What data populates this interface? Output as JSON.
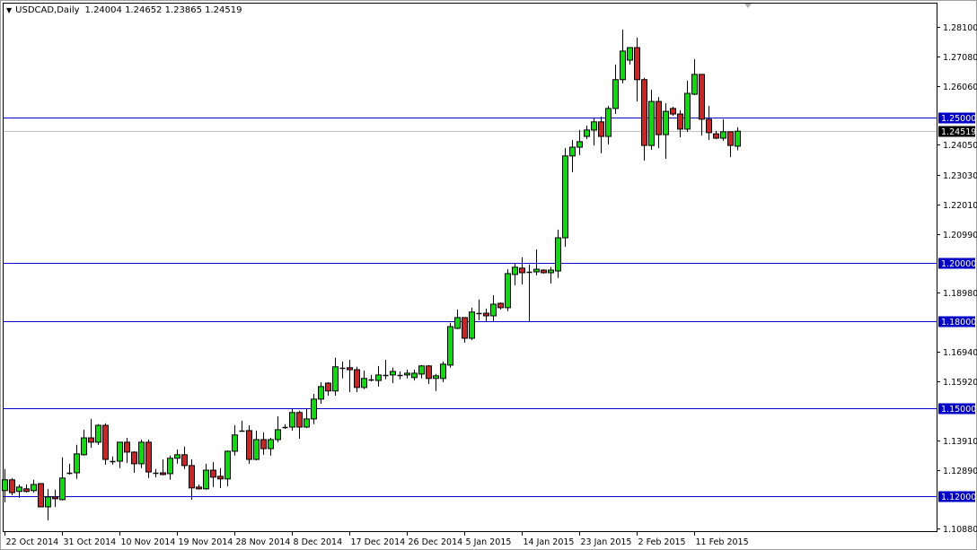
{
  "header": {
    "symbol_timeframe": "USDCAD,Daily",
    "ohlc_text": "1.24004 1.24652 1.23865 1.24519"
  },
  "colors": {
    "bull": "#00e400",
    "bear": "#d81e1e",
    "level_line": "#0000c8",
    "bid_line": "#c0c0c0",
    "current_label_bg": "#000000"
  },
  "chart_data": {
    "type": "candlestick",
    "title": "USDCAD,Daily",
    "ylim": [
      1.1088,
      1.281
    ],
    "grid": false,
    "y_tick_labels": [
      "1.28100",
      "1.27080",
      "1.26060",
      "1.24050",
      "1.23030",
      "1.22010",
      "1.20990",
      "1.18980",
      "1.16940",
      "1.15920",
      "1.13910",
      "1.12890",
      "1.10880"
    ],
    "horizontal_levels": [
      {
        "price": 1.25,
        "label": "1.25000"
      },
      {
        "price": 1.2,
        "label": "1.20000"
      },
      {
        "price": 1.18,
        "label": "1.18000"
      },
      {
        "price": 1.15,
        "label": "1.15000"
      },
      {
        "price": 1.12,
        "label": "1.12000"
      }
    ],
    "current_price": {
      "price": 1.24519,
      "label": "1.24519"
    },
    "x_tick_labels": [
      {
        "bar": 0,
        "label": "22 Oct 2014"
      },
      {
        "bar": 8,
        "label": "31 Oct 2014"
      },
      {
        "bar": 16,
        "label": "10 Nov 2014"
      },
      {
        "bar": 24,
        "label": "19 Nov 2014"
      },
      {
        "bar": 32,
        "label": "28 Nov 2014"
      },
      {
        "bar": 40,
        "label": "8 Dec 2014"
      },
      {
        "bar": 48,
        "label": "17 Dec 2014"
      },
      {
        "bar": 56,
        "label": "26 Dec 2014"
      },
      {
        "bar": 64,
        "label": "5 Jan 2015"
      },
      {
        "bar": 72,
        "label": "14 Jan 2015"
      },
      {
        "bar": 80,
        "label": "23 Jan 2015"
      },
      {
        "bar": 88,
        "label": "2 Feb 2015"
      },
      {
        "bar": 96,
        "label": "11 Feb 2015"
      }
    ],
    "ohlc": [
      [
        1.1218,
        1.1292,
        1.1178,
        1.1255
      ],
      [
        1.1255,
        1.1261,
        1.1202,
        1.1211
      ],
      [
        1.1215,
        1.1239,
        1.1193,
        1.123
      ],
      [
        1.1224,
        1.1239,
        1.1211,
        1.1215
      ],
      [
        1.1218,
        1.1255,
        1.1211,
        1.1239
      ],
      [
        1.1242,
        1.1242,
        1.1162,
        1.1162
      ],
      [
        1.1162,
        1.1224,
        1.1116,
        1.1196
      ],
      [
        1.1196,
        1.1221,
        1.1162,
        1.119
      ],
      [
        1.1187,
        1.1332,
        1.1184,
        1.1261
      ],
      [
        1.1279,
        1.131,
        1.1273,
        1.1279
      ],
      [
        1.1279,
        1.1375,
        1.1258,
        1.1344
      ],
      [
        1.1341,
        1.1427,
        1.1338,
        1.1399
      ],
      [
        1.1399,
        1.1464,
        1.1365,
        1.1384
      ],
      [
        1.1384,
        1.1446,
        1.1375,
        1.1442
      ],
      [
        1.1442,
        1.1449,
        1.1307,
        1.1325
      ],
      [
        1.1319,
        1.1335,
        1.1307,
        1.1319
      ],
      [
        1.1319,
        1.1384,
        1.1295,
        1.1384
      ],
      [
        1.1384,
        1.1399,
        1.1313,
        1.135
      ],
      [
        1.135,
        1.1353,
        1.1279,
        1.131
      ],
      [
        1.131,
        1.1393,
        1.1295,
        1.1384
      ],
      [
        1.1384,
        1.1393,
        1.1261,
        1.1282
      ],
      [
        1.1279,
        1.1292,
        1.1264,
        1.1279
      ],
      [
        1.1279,
        1.1325,
        1.127,
        1.1273
      ],
      [
        1.1276,
        1.1338,
        1.1255,
        1.1329
      ],
      [
        1.1329,
        1.1359,
        1.131,
        1.1341
      ],
      [
        1.1341,
        1.1369,
        1.1292,
        1.1304
      ],
      [
        1.1304,
        1.1325,
        1.1187,
        1.1227
      ],
      [
        1.123,
        1.1239,
        1.1221,
        1.1224
      ],
      [
        1.1224,
        1.131,
        1.1221,
        1.1288
      ],
      [
        1.1288,
        1.1316,
        1.123,
        1.1264
      ],
      [
        1.1267,
        1.1295,
        1.1227,
        1.1258
      ],
      [
        1.1258,
        1.1356,
        1.1233,
        1.1353
      ],
      [
        1.1353,
        1.1442,
        1.1338,
        1.1409
      ],
      [
        1.1424,
        1.1458,
        1.1421,
        1.1424
      ],
      [
        1.1424,
        1.1442,
        1.131,
        1.1325
      ],
      [
        1.1325,
        1.1424,
        1.1322,
        1.1393
      ],
      [
        1.1393,
        1.1418,
        1.1341,
        1.1362
      ],
      [
        1.1362,
        1.1399,
        1.1338,
        1.1393
      ],
      [
        1.1393,
        1.1473,
        1.1384,
        1.1427
      ],
      [
        1.1436,
        1.1446,
        1.143,
        1.1436
      ],
      [
        1.1436,
        1.1501,
        1.1424,
        1.1486
      ],
      [
        1.1486,
        1.1492,
        1.1396,
        1.1436
      ],
      [
        1.1436,
        1.1498,
        1.1433,
        1.1464
      ],
      [
        1.1464,
        1.155,
        1.1446,
        1.1532
      ],
      [
        1.1532,
        1.159,
        1.1516,
        1.1575
      ],
      [
        1.1587,
        1.159,
        1.1544,
        1.156
      ],
      [
        1.156,
        1.1674,
        1.1544,
        1.1643
      ],
      [
        1.164,
        1.1661,
        1.1603,
        1.164
      ],
      [
        1.164,
        1.1667,
        1.1556,
        1.1633
      ],
      [
        1.1633,
        1.1643,
        1.1556,
        1.1572
      ],
      [
        1.1572,
        1.163,
        1.1566,
        1.1603
      ],
      [
        1.16,
        1.1615,
        1.1593,
        1.16
      ],
      [
        1.1596,
        1.1646,
        1.1575,
        1.1615
      ],
      [
        1.1615,
        1.1667,
        1.16,
        1.1615
      ],
      [
        1.1615,
        1.164,
        1.1587,
        1.1627
      ],
      [
        1.1615,
        1.1627,
        1.16,
        1.1615
      ],
      [
        1.1615,
        1.1633,
        1.1603,
        1.1621
      ],
      [
        1.1606,
        1.1633,
        1.1596,
        1.1621
      ],
      [
        1.1618,
        1.1649,
        1.1603,
        1.1646
      ],
      [
        1.1646,
        1.1649,
        1.1584,
        1.1603
      ],
      [
        1.1603,
        1.1618,
        1.156,
        1.1612
      ],
      [
        1.1603,
        1.1661,
        1.159,
        1.1652
      ],
      [
        1.1649,
        1.1794,
        1.164,
        1.1781
      ],
      [
        1.1775,
        1.184,
        1.1772,
        1.1812
      ],
      [
        1.1812,
        1.1812,
        1.1726,
        1.1741
      ],
      [
        1.1741,
        1.1846,
        1.1735,
        1.1831
      ],
      [
        1.1827,
        1.1874,
        1.1803,
        1.1827
      ],
      [
        1.1827,
        1.1843,
        1.1797,
        1.1818
      ],
      [
        1.1818,
        1.1889,
        1.18,
        1.1858
      ],
      [
        1.1861,
        1.1864,
        1.184,
        1.1846
      ],
      [
        1.1846,
        1.1978,
        1.1834,
        1.1963
      ],
      [
        1.196,
        1.1997,
        1.1923,
        1.1985
      ],
      [
        1.1982,
        1.2019,
        1.1926,
        1.1966
      ],
      [
        1.1969,
        1.1994,
        1.18,
        1.1969
      ],
      [
        1.1969,
        1.2046,
        1.1957,
        1.1978
      ],
      [
        1.1975,
        1.1978,
        1.1963,
        1.1966
      ],
      [
        1.1966,
        1.1985,
        1.1929,
        1.1975
      ],
      [
        1.1972,
        1.2114,
        1.1948,
        1.2086
      ],
      [
        1.2086,
        1.2394,
        1.2055,
        1.2367
      ],
      [
        1.2367,
        1.2422,
        1.2311,
        1.2397
      ],
      [
        1.2397,
        1.2456,
        1.237,
        1.2416
      ],
      [
        1.2434,
        1.2471,
        1.2425,
        1.2456
      ],
      [
        1.2456,
        1.2496,
        1.2403,
        1.2484
      ],
      [
        1.2484,
        1.2502,
        1.2376,
        1.2434
      ],
      [
        1.2434,
        1.2539,
        1.2407,
        1.253
      ],
      [
        1.253,
        1.2681,
        1.2511,
        1.2629
      ],
      [
        1.2629,
        1.2801,
        1.2616,
        1.2727
      ],
      [
        1.2696,
        1.2739,
        1.2681,
        1.2739
      ],
      [
        1.2739,
        1.2773,
        1.2554,
        1.2629
      ],
      [
        1.2629,
        1.2635,
        1.2351,
        1.2403
      ],
      [
        1.2403,
        1.2594,
        1.2388,
        1.2554
      ],
      [
        1.2554,
        1.2569,
        1.2394,
        1.244
      ],
      [
        1.244,
        1.2548,
        1.2357,
        1.252
      ],
      [
        1.253,
        1.2536,
        1.2505,
        1.2511
      ],
      [
        1.2511,
        1.2524,
        1.2431,
        1.2459
      ],
      [
        1.2459,
        1.2625,
        1.245,
        1.2582
      ],
      [
        1.2579,
        1.2699,
        1.2576,
        1.2647
      ],
      [
        1.2647,
        1.2647,
        1.2437,
        1.2493
      ],
      [
        1.2493,
        1.2539,
        1.2422,
        1.2447
      ],
      [
        1.2443,
        1.2453,
        1.2425,
        1.2428
      ],
      [
        1.2428,
        1.2493,
        1.2419,
        1.245
      ],
      [
        1.245,
        1.245,
        1.2363,
        1.2403
      ],
      [
        1.24004,
        1.24652,
        1.23865,
        1.24519
      ]
    ]
  }
}
